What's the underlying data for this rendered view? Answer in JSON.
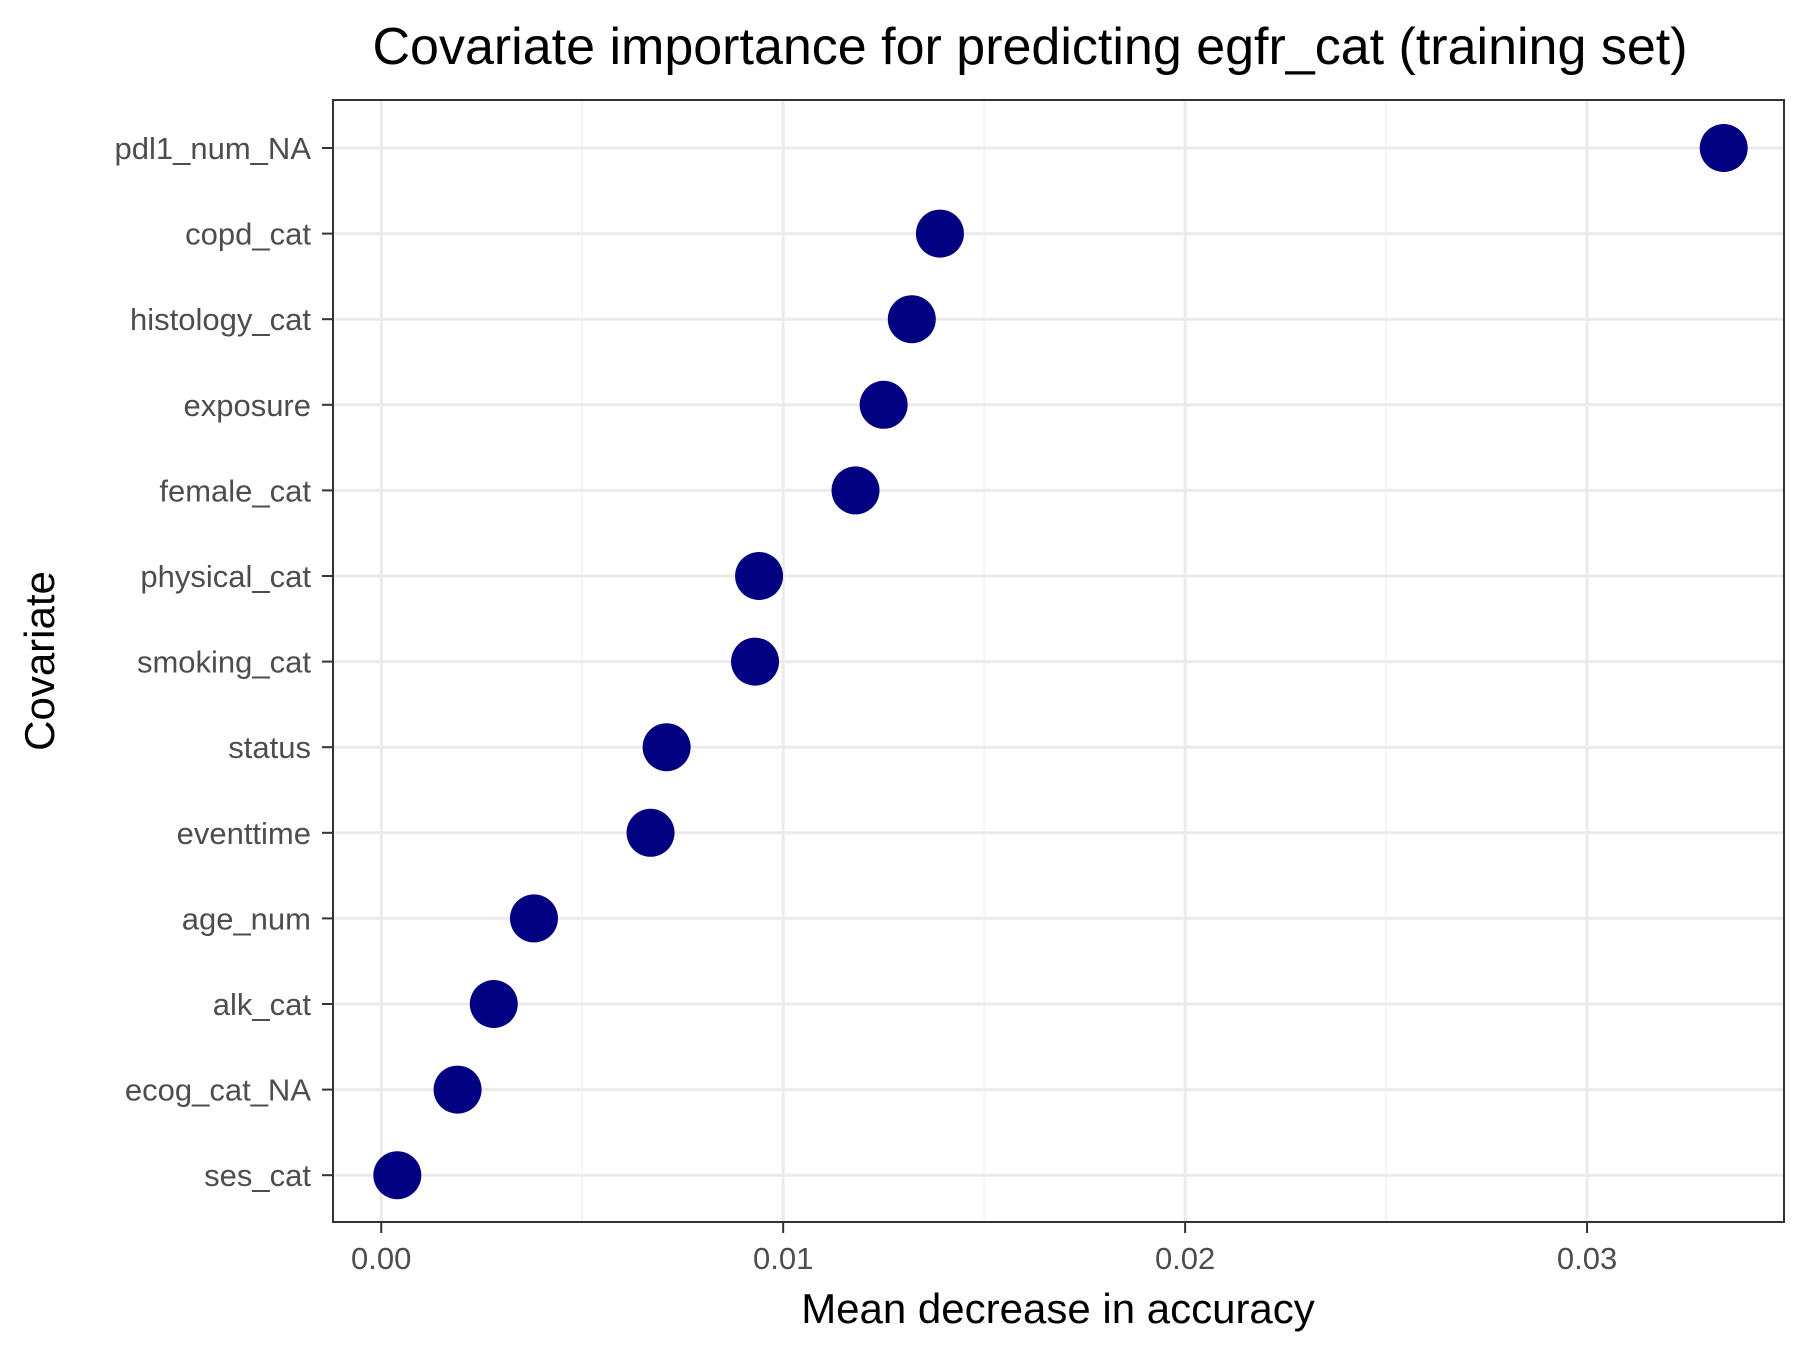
{
  "chart_data": {
    "type": "scatter",
    "title": "Covariate importance for predicting egfr_cat (training set)",
    "xlabel": "Mean decrease in accuracy",
    "ylabel": "Covariate",
    "xlim": [
      -0.0012,
      0.0349
    ],
    "x_ticks": [
      0.0,
      0.01,
      0.02,
      0.03
    ],
    "x_tick_labels": [
      "0.00",
      "0.01",
      "0.02",
      "0.03"
    ],
    "grid": true,
    "categories": [
      "pdl1_num_NA",
      "copd_cat",
      "histology_cat",
      "exposure",
      "female_cat",
      "physical_cat",
      "smoking_cat",
      "status",
      "eventtime",
      "age_num",
      "alk_cat",
      "ecog_cat_NA",
      "ses_cat"
    ],
    "values": [
      0.0334,
      0.0139,
      0.0132,
      0.0125,
      0.0118,
      0.0094,
      0.0093,
      0.0071,
      0.0067,
      0.0038,
      0.0028,
      0.0019,
      0.0004
    ],
    "marker_color": "#000080"
  }
}
